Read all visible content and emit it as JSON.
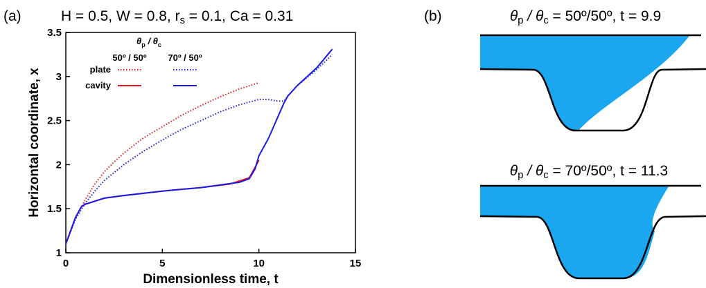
{
  "chart_data": {
    "type": "line",
    "panel_label": "(a)",
    "title": [
      "H = 0.5, W = 0.8, r",
      "s",
      " = 0.1, Ca = 0.31"
    ],
    "x_label": "Dimensionless time, t",
    "y_label": "Horizontal coordinate, x",
    "xlim": [
      0,
      15
    ],
    "xticks": [
      0,
      5,
      10,
      15
    ],
    "ylim": [
      1,
      3.5
    ],
    "yticks": [
      1,
      1.5,
      2,
      2.5,
      3,
      3.5
    ],
    "legend": {
      "header": [
        "θ",
        "p",
        " / θ",
        "c"
      ],
      "columns": [
        "50º / 50º",
        "70º / 50º"
      ],
      "rows": [
        "plate",
        "cavity"
      ]
    },
    "series": [
      {
        "color": "#e8141c",
        "dash": "dotted",
        "x": [
          0,
          0.5,
          1,
          1.5,
          2,
          2.5,
          3,
          4,
          5,
          6,
          7,
          8,
          9,
          10
        ],
        "values": [
          1.1,
          1.4,
          1.6,
          1.78,
          1.92,
          2.03,
          2.13,
          2.3,
          2.43,
          2.56,
          2.67,
          2.77,
          2.86,
          2.93
        ]
      },
      {
        "color": "#e8141c",
        "dash": "solid",
        "x": [
          0,
          0.5,
          0.8,
          1,
          2,
          3,
          5,
          7,
          8.5,
          9.5,
          10
        ],
        "values": [
          1.1,
          1.4,
          1.52,
          1.55,
          1.62,
          1.65,
          1.7,
          1.74,
          1.78,
          1.85,
          2.05
        ]
      },
      {
        "color": "#1a1ae6",
        "dash": "dotted",
        "x": [
          0,
          0.5,
          1,
          1.5,
          2,
          3,
          4,
          5,
          6,
          7,
          8,
          9,
          10,
          10.5,
          11,
          11.3,
          11.5,
          12,
          13,
          13.8
        ],
        "values": [
          1.1,
          1.38,
          1.56,
          1.7,
          1.82,
          2.0,
          2.15,
          2.28,
          2.4,
          2.5,
          2.6,
          2.68,
          2.74,
          2.74,
          2.72,
          2.72,
          2.78,
          2.9,
          3.08,
          3.25
        ]
      },
      {
        "color": "#1a1ae6",
        "dash": "solid",
        "x": [
          0,
          0.5,
          0.8,
          1,
          2,
          3,
          5,
          7,
          9,
          9.5,
          9.8,
          10,
          10.5,
          11,
          11.3,
          11.5,
          12,
          13,
          13.8
        ],
        "values": [
          1.1,
          1.4,
          1.52,
          1.55,
          1.62,
          1.65,
          1.7,
          1.74,
          1.8,
          1.84,
          1.95,
          2.1,
          2.3,
          2.55,
          2.7,
          2.78,
          2.9,
          3.1,
          3.31
        ]
      }
    ]
  },
  "panel_b": {
    "label": "(b)",
    "diagrams": [
      {
        "title": [
          "θ",
          "p",
          " / θ",
          "c",
          " = 50º/50º, t = 9.9"
        ]
      },
      {
        "title": [
          "θ",
          "p",
          " / θ",
          "c",
          " = 70º/50º, t = 11.3"
        ]
      }
    ]
  }
}
